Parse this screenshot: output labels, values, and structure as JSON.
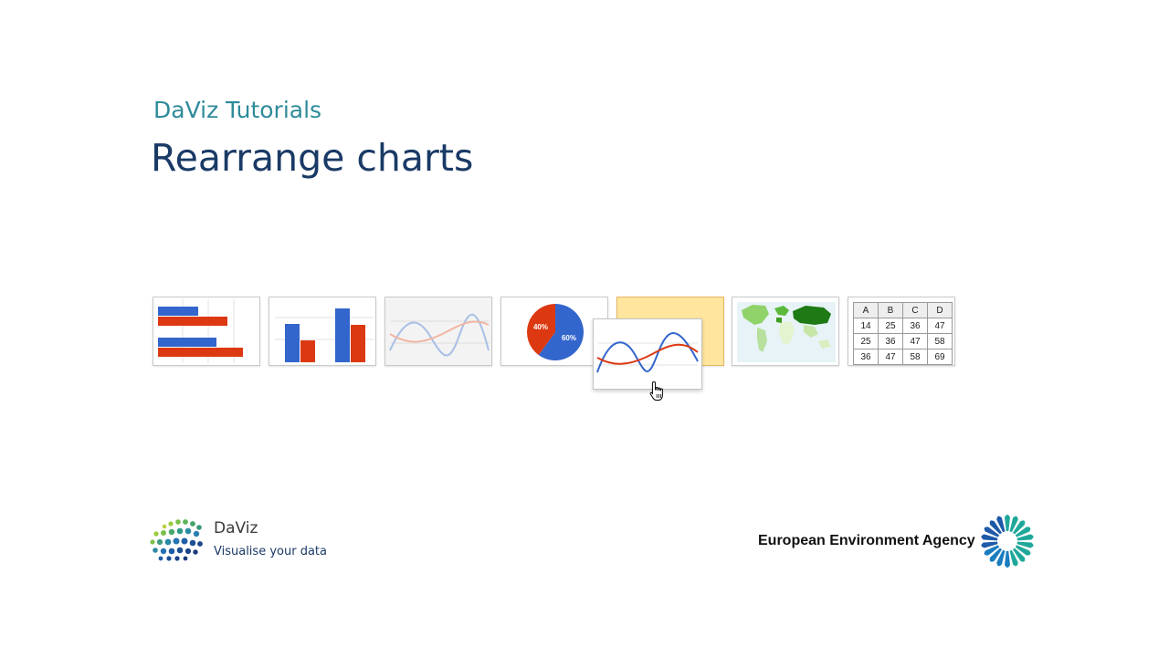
{
  "header": {
    "subtitle": "DaViz Tutorials",
    "title": "Rearrange charts"
  },
  "thumbnails": [
    {
      "name": "horizontal-bar-chart",
      "icon": "bar-chart-icon"
    },
    {
      "name": "column-chart",
      "icon": "column-chart-icon"
    },
    {
      "name": "line-chart",
      "icon": "line-chart-icon"
    },
    {
      "name": "pie-chart",
      "icon": "pie-chart-icon",
      "labels": [
        "40%",
        "60%"
      ],
      "values": [
        40,
        60
      ]
    },
    {
      "name": "drop-placeholder"
    },
    {
      "name": "geo-map-chart",
      "icon": "world-map-icon"
    },
    {
      "name": "table-chart",
      "icon": "table-icon"
    }
  ],
  "table": {
    "headers": [
      "A",
      "B",
      "C",
      "D"
    ],
    "rows": [
      [
        "14",
        "25",
        "36",
        "47"
      ],
      [
        "25",
        "36",
        "47",
        "58"
      ],
      [
        "36",
        "47",
        "58",
        "69"
      ]
    ]
  },
  "colors": {
    "blue": "#3366cc",
    "red": "#dc3912",
    "accent_teal": "#2e8b9a",
    "title_navy": "#1a3a66",
    "placeholder": "#ffe59e"
  },
  "footer": {
    "daviz_name": "DaViz",
    "daviz_tagline": "Visualise your data",
    "eea_name": "European Environment Agency"
  }
}
